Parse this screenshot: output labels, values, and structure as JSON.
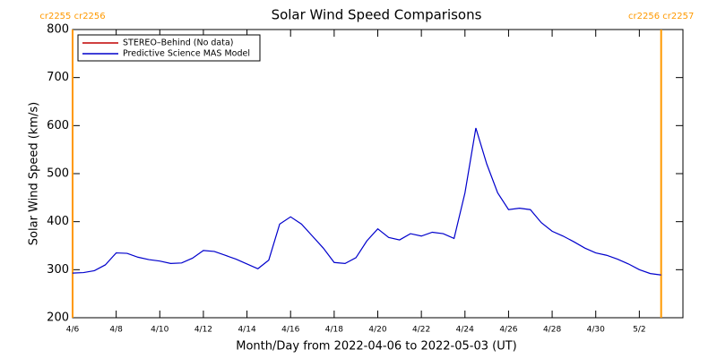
{
  "chart_data": {
    "type": "line",
    "title": "Solar Wind Speed Comparisons",
    "x_label": "Month/Day from 2022-04-06 to 2022-05-03 (UT)",
    "y_label": "Solar Wind Speed (km/s)",
    "x": [
      0,
      0.5,
      1,
      1.5,
      2,
      2.5,
      3,
      3.5,
      4,
      4.5,
      5,
      5.5,
      6,
      6.5,
      7,
      7.5,
      8,
      8.5,
      9,
      9.5,
      10,
      10.5,
      11,
      11.5,
      12,
      12.5,
      13,
      13.5,
      14,
      14.5,
      15,
      15.5,
      16,
      16.5,
      17,
      17.5,
      18,
      18.5,
      19,
      19.5,
      20,
      20.5,
      21,
      21.5,
      22,
      22.5,
      23,
      23.5,
      24,
      24.5,
      25,
      25.5,
      26,
      26.5,
      27
    ],
    "series": [
      {
        "name": "STEREO–Behind (No data)",
        "color": "#c00000",
        "values": [
          null,
          null,
          null,
          null,
          null,
          null,
          null,
          null,
          null,
          null,
          null,
          null,
          null,
          null,
          null,
          null,
          null,
          null,
          null,
          null,
          null,
          null,
          null,
          null,
          null,
          null,
          null,
          null,
          null,
          null,
          null,
          null,
          null,
          null,
          null,
          null,
          null,
          null,
          null,
          null,
          null,
          null,
          null,
          null,
          null,
          null,
          null,
          null,
          null,
          null,
          null,
          null,
          null,
          null,
          null
        ]
      },
      {
        "name": "Predictive Science MAS Model",
        "color": "#0000cc",
        "values": [
          293,
          294,
          298,
          310,
          335,
          334,
          326,
          321,
          318,
          313,
          314,
          324,
          340,
          338,
          330,
          322,
          312,
          302,
          320,
          395,
          410,
          395,
          370,
          345,
          315,
          313,
          325,
          360,
          385,
          367,
          362,
          375,
          370,
          378,
          375,
          365,
          460,
          595,
          520,
          460,
          425,
          428,
          425,
          398,
          380,
          370,
          358,
          345,
          335,
          330,
          322,
          312,
          300,
          292,
          289
        ]
      }
    ],
    "xlim": [
      0,
      28
    ],
    "xticks": [
      {
        "value": 0,
        "label": "4/6"
      },
      {
        "value": 2,
        "label": "4/8"
      },
      {
        "value": 4,
        "label": "4/10"
      },
      {
        "value": 6,
        "label": "4/12"
      },
      {
        "value": 8,
        "label": "4/14"
      },
      {
        "value": 10,
        "label": "4/16"
      },
      {
        "value": 12,
        "label": "4/18"
      },
      {
        "value": 14,
        "label": "4/20"
      },
      {
        "value": 16,
        "label": "4/22"
      },
      {
        "value": 18,
        "label": "4/24"
      },
      {
        "value": 20,
        "label": "4/26"
      },
      {
        "value": 22,
        "label": "4/28"
      },
      {
        "value": 24,
        "label": "4/30"
      },
      {
        "value": 26,
        "label": "5/2"
      }
    ],
    "ylim": [
      200,
      800
    ],
    "yticks": [
      200,
      300,
      400,
      500,
      600,
      700,
      800
    ],
    "markers": [
      {
        "x": 0,
        "label": "cr2255 cr2256"
      },
      {
        "x": 27,
        "label": "cr2256 cr2257"
      }
    ],
    "marker_color": "#ff9900",
    "legend": "upper left"
  }
}
